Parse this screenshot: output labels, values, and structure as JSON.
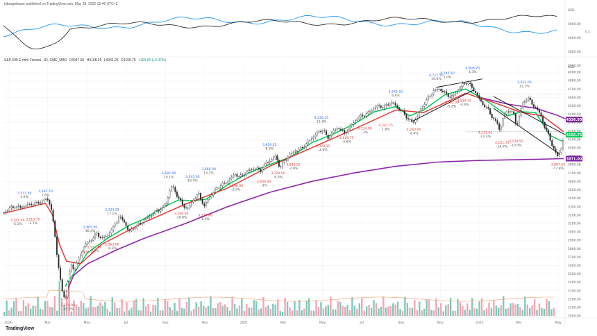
{
  "header": {
    "published_by": "lukasgebauer published on TradingView.com, May 28, 2022 15:46 UTC+2"
  },
  "legend": {
    "symbol": "S&P 500 E-mini Futures, 1D, CME_MINI",
    "open": "O4047.50",
    "high": "H4168.25",
    "low": "L4041.25",
    "close": "C4155.75",
    "change": "+100.00 (+2.47%)"
  },
  "branding": {
    "logo_text": "TradingView"
  },
  "colors": {
    "bg": "#ffffff",
    "grid": "#eef0f3",
    "price": "#2b2b2b",
    "ema_fast": "#00c853",
    "ema_mid": "#e53935",
    "ma_slow": "#8e24aa",
    "overlay_blue": "#2196f3",
    "overlay_black": "#2b2b2b",
    "volume_up": "#7fc9b9",
    "volume_down": "#f3a6b5",
    "tag_green": "#00c853",
    "tag_purple": "#7b1fa2",
    "tag_blue": "#2962ff",
    "annot_high": "#2962ff",
    "annot_low": "#e53935"
  },
  "chart_data": [
    {
      "type": "line",
      "panel": "comparison overlay",
      "y_axis_unit": "USD",
      "y_ticks": [
        "5000.00",
        "4000.00",
        "3000.00",
        "2000.00"
      ],
      "right_labels": [
        "0.1"
      ],
      "series": []
    },
    {
      "type": "candlestick",
      "panel": "main price",
      "y_axis_unit": "USD",
      "ylim": [
        2000,
        4900
      ],
      "x_tick_labels": [
        "2020",
        "Mar",
        "May",
        "Jul",
        "Sep",
        "Nov",
        "2021",
        "Mar",
        "May",
        "Jul",
        "Sep",
        "Nov",
        "2022",
        "Mar",
        "May"
      ],
      "y_tick_labels": [
        "4900.00",
        "4800.00",
        "4700.00",
        "4600.00",
        "4500.00",
        "4400.00",
        "4300.00",
        "4200.00",
        "4100.00",
        "4000.00",
        "3900.00",
        "3800.00",
        "3700.00",
        "3600.00",
        "3500.00",
        "3400.00",
        "3300.00",
        "3200.00",
        "3100.00",
        "3000.00",
        "2900.00",
        "2800.00",
        "2700.00",
        "2600.00",
        "2500.00",
        "2400.00",
        "2300.00",
        "2200.00",
        "2100.00",
        "2000.00"
      ],
      "price_tags": [
        {
          "label": "4336.50",
          "value": 4336.5,
          "color": "#7b1fa2"
        },
        {
          "label": "4155.75",
          "value": 4155.75,
          "color": "#00c853"
        },
        {
          "label": "3871.00",
          "value": 3871,
          "color": "#7b1fa2"
        }
      ],
      "price_path": [
        [
          0,
          3230
        ],
        [
          8,
          3280
        ],
        [
          16,
          3300
        ],
        [
          24,
          3290
        ],
        [
          30,
          3310
        ],
        [
          38,
          3330
        ],
        [
          46,
          3340
        ],
        [
          54,
          3360
        ],
        [
          60,
          3390
        ],
        [
          64,
          3370
        ],
        [
          68,
          3250
        ],
        [
          72,
          3000
        ],
        [
          76,
          2700
        ],
        [
          80,
          2450
        ],
        [
          84,
          2250
        ],
        [
          88,
          2200
        ],
        [
          92,
          2480
        ],
        [
          96,
          2600
        ],
        [
          100,
          2550
        ],
        [
          108,
          2700
        ],
        [
          116,
          2850
        ],
        [
          124,
          2900
        ],
        [
          132,
          2980
        ],
        [
          140,
          2920
        ],
        [
          148,
          2960
        ],
        [
          156,
          3050
        ],
        [
          164,
          3180
        ],
        [
          172,
          3120
        ],
        [
          178,
          3000
        ],
        [
          186,
          3050
        ],
        [
          194,
          3100
        ],
        [
          202,
          3150
        ],
        [
          210,
          3200
        ],
        [
          218,
          3250
        ],
        [
          226,
          3280
        ],
        [
          232,
          3350
        ],
        [
          236,
          3480
        ],
        [
          240,
          3550
        ],
        [
          248,
          3420
        ],
        [
          256,
          3310
        ],
        [
          262,
          3270
        ],
        [
          270,
          3380
        ],
        [
          278,
          3450
        ],
        [
          286,
          3300
        ],
        [
          292,
          3400
        ],
        [
          300,
          3480
        ],
        [
          308,
          3550
        ],
        [
          316,
          3580
        ],
        [
          324,
          3640
        ],
        [
          330,
          3690
        ],
        [
          336,
          3650
        ],
        [
          344,
          3700
        ],
        [
          352,
          3740
        ],
        [
          360,
          3760
        ],
        [
          366,
          3720
        ],
        [
          372,
          3800
        ],
        [
          380,
          3850
        ],
        [
          388,
          3900
        ],
        [
          394,
          3760
        ],
        [
          400,
          3840
        ],
        [
          408,
          3920
        ],
        [
          416,
          3960
        ],
        [
          424,
          3990
        ],
        [
          432,
          4050
        ],
        [
          440,
          4120
        ],
        [
          448,
          4180
        ],
        [
          456,
          4220
        ],
        [
          462,
          4110
        ],
        [
          470,
          4200
        ],
        [
          478,
          4240
        ],
        [
          486,
          4170
        ],
        [
          494,
          4250
        ],
        [
          502,
          4330
        ],
        [
          510,
          4380
        ],
        [
          518,
          4400
        ],
        [
          526,
          4460
        ],
        [
          534,
          4500
        ],
        [
          542,
          4480
        ],
        [
          550,
          4530
        ],
        [
          556,
          4530
        ],
        [
          562,
          4480
        ],
        [
          570,
          4420
        ],
        [
          578,
          4330
        ],
        [
          584,
          4300
        ],
        [
          590,
          4370
        ],
        [
          598,
          4500
        ],
        [
          606,
          4600
        ],
        [
          614,
          4680
        ],
        [
          622,
          4700
        ],
        [
          630,
          4650
        ],
        [
          638,
          4600
        ],
        [
          644,
          4650
        ],
        [
          650,
          4700
        ],
        [
          656,
          4760
        ],
        [
          662,
          4780
        ],
        [
          668,
          4720
        ],
        [
          674,
          4650
        ],
        [
          680,
          4560
        ],
        [
          686,
          4500
        ],
        [
          692,
          4450
        ],
        [
          698,
          4350
        ],
        [
          704,
          4300
        ],
        [
          708,
          4200
        ],
        [
          712,
          4350
        ],
        [
          720,
          4450
        ],
        [
          728,
          4400
        ],
        [
          732,
          4250
        ],
        [
          740,
          4520
        ],
        [
          748,
          4600
        ],
        [
          754,
          4520
        ],
        [
          760,
          4470
        ],
        [
          766,
          4400
        ],
        [
          772,
          4250
        ],
        [
          778,
          4150
        ],
        [
          784,
          4000
        ],
        [
          790,
          3900
        ],
        [
          796,
          4000
        ],
        [
          800,
          4156
        ]
      ],
      "ema_fast_path": [
        [
          88,
          2350
        ],
        [
          100,
          2500
        ],
        [
          120,
          2750
        ],
        [
          150,
          2930
        ],
        [
          180,
          3080
        ],
        [
          200,
          3150
        ],
        [
          230,
          3300
        ],
        [
          250,
          3380
        ],
        [
          270,
          3370
        ],
        [
          290,
          3390
        ],
        [
          320,
          3560
        ],
        [
          350,
          3700
        ],
        [
          380,
          3800
        ],
        [
          410,
          3890
        ],
        [
          440,
          4060
        ],
        [
          470,
          4160
        ],
        [
          500,
          4280
        ],
        [
          530,
          4430
        ],
        [
          560,
          4490
        ],
        [
          580,
          4380
        ],
        [
          600,
          4450
        ],
        [
          630,
          4630
        ],
        [
          660,
          4700
        ],
        [
          690,
          4560
        ],
        [
          720,
          4380
        ],
        [
          740,
          4430
        ],
        [
          760,
          4420
        ],
        [
          780,
          4150
        ],
        [
          800,
          4070
        ]
      ],
      "ema_mid_path": [
        [
          0,
          3220
        ],
        [
          60,
          3340
        ],
        [
          70,
          3200
        ],
        [
          80,
          2850
        ],
        [
          90,
          2650
        ],
        [
          110,
          2620
        ],
        [
          140,
          2850
        ],
        [
          200,
          3110
        ],
        [
          260,
          3330
        ],
        [
          320,
          3520
        ],
        [
          380,
          3780
        ],
        [
          440,
          4000
        ],
        [
          500,
          4220
        ],
        [
          560,
          4450
        ],
        [
          600,
          4420
        ],
        [
          660,
          4650
        ],
        [
          700,
          4540
        ],
        [
          740,
          4420
        ],
        [
          770,
          4380
        ],
        [
          800,
          4190
        ]
      ],
      "ma_slow_path": [
        [
          90,
          2280
        ],
        [
          100,
          2480
        ],
        [
          120,
          2620
        ],
        [
          160,
          2780
        ],
        [
          200,
          2920
        ],
        [
          260,
          3100
        ],
        [
          320,
          3300
        ],
        [
          380,
          3470
        ],
        [
          440,
          3600
        ],
        [
          500,
          3700
        ],
        [
          560,
          3780
        ],
        [
          620,
          3830
        ],
        [
          680,
          3850
        ],
        [
          740,
          3860
        ],
        [
          800,
          3871
        ]
      ],
      "ma_upper_path": [
        [
          680,
          4600
        ],
        [
          720,
          4520
        ],
        [
          760,
          4470
        ],
        [
          790,
          4390
        ],
        [
          805,
          4336
        ]
      ],
      "trend_lines": [
        {
          "from": [
            585,
            4320
          ],
          "to": [
            672,
            4690
          ]
        },
        {
          "from": [
            618,
            4720
          ],
          "to": [
            684,
            4820
          ]
        },
        {
          "from": [
            700,
            4610
          ],
          "to": [
            808,
            4130
          ]
        },
        {
          "from": [
            700,
            4470
          ],
          "to": [
            795,
            3920
          ]
        }
      ],
      "dotted_levels": [
        4640,
        4195
      ],
      "annotations": [
        {
          "x": 30,
          "y": 3385,
          "lines": [
            "3,337.50",
            "4.9%"
          ],
          "kind": "high"
        },
        {
          "x": 60,
          "y": 3405,
          "lines": [
            "3,397.50",
            "1.8%"
          ],
          "kind": "high"
        },
        {
          "x": 20,
          "y": 3160,
          "lines": [
            "3,181.00",
            "-5.1%"
          ],
          "kind": "low"
        },
        {
          "x": 42,
          "y": 3170,
          "lines": [
            "3,213.75",
            "-3.7%"
          ],
          "kind": "low"
        },
        {
          "x": 92,
          "y": 2150,
          "lines": [
            "2,174.00",
            "-34.0%"
          ],
          "kind": "low"
        },
        {
          "x": 124,
          "y": 2980,
          "lines": [
            "2,965.00",
            "36.4%"
          ],
          "kind": "high"
        },
        {
          "x": 155,
          "y": 3185,
          "lines": [
            "3,233.25",
            "17.1%"
          ],
          "kind": "high"
        },
        {
          "x": 130,
          "y": 2840,
          "lines": [
            "2,913.50",
            "-7.7%"
          ],
          "kind": "low"
        },
        {
          "x": 155,
          "y": 2870,
          "lines": [
            "2,963.00",
            "-8.2%"
          ],
          "kind": "low"
        },
        {
          "x": 120,
          "y": 2780,
          "lines": [
            "2,745.25"
          ],
          "kind": "low"
        },
        {
          "x": 236,
          "y": 3620,
          "lines": [
            "3,587.00",
            "10.1%"
          ],
          "kind": "high"
        },
        {
          "x": 270,
          "y": 3580,
          "lines": [
            "3,545.00",
            "10.7%"
          ],
          "kind": "high"
        },
        {
          "x": 293,
          "y": 3670,
          "lines": [
            "3,668.00",
            "13.7%"
          ],
          "kind": "high"
        },
        {
          "x": 254,
          "y": 3240,
          "lines": [
            "3,196.00",
            "-10.8%"
          ],
          "kind": "low"
        },
        {
          "x": 288,
          "y": 3220,
          "lines": [
            "3,223.00",
            "-8.9%"
          ],
          "kind": "low"
        },
        {
          "x": 332,
          "y": 3570,
          "lines": [
            "3,596.00",
            "-2.0%"
          ],
          "kind": "low"
        },
        {
          "x": 372,
          "y": 3620,
          "lines": [
            "3,656.00",
            "-3%"
          ],
          "kind": "low"
        },
        {
          "x": 380,
          "y": 3960,
          "lines": [
            "3,959.25",
            "8.3%"
          ],
          "kind": "high"
        },
        {
          "x": 392,
          "y": 3720,
          "lines": [
            "3,720.50",
            "-6.0%"
          ],
          "kind": "low"
        },
        {
          "x": 414,
          "y": 3820,
          "lines": [
            "3,843.25",
            "-2.9%"
          ],
          "kind": "low"
        },
        {
          "x": 454,
          "y": 4280,
          "lines": [
            "4,236.25",
            "10.3%"
          ],
          "kind": "high"
        },
        {
          "x": 456,
          "y": 4040,
          "lines": [
            "4,029.25",
            "-4.9%"
          ],
          "kind": "low"
        },
        {
          "x": 490,
          "y": 4140,
          "lines": [
            "4,126.75",
            "-2.6%"
          ],
          "kind": "low"
        },
        {
          "x": 516,
          "y": 4250,
          "lines": [
            "4,114.00",
            "-3%"
          ],
          "kind": "low"
        },
        {
          "x": 546,
          "y": 4290,
          "lines": [
            "4,347.75",
            "1.6%"
          ],
          "kind": "low"
        },
        {
          "x": 560,
          "y": 4590,
          "lines": [
            "4,545.50",
            "4.6%"
          ],
          "kind": "high"
        },
        {
          "x": 586,
          "y": 4240,
          "lines": [
            "4,260.00",
            "-6.4%"
          ],
          "kind": "low"
        },
        {
          "x": 618,
          "y": 4790,
          "lines": [
            "4,711.50",
            "10.6%"
          ],
          "kind": "high"
        },
        {
          "x": 634,
          "y": 4810,
          "lines": [
            "4,745.50",
            "1.0%"
          ],
          "kind": "high"
        },
        {
          "x": 670,
          "y": 4870,
          "lines": [
            "4,808.25",
            "1.3%"
          ],
          "kind": "high"
        },
        {
          "x": 640,
          "y": 4560,
          "lines": [
            "4,501.00",
            "-5.2%"
          ],
          "kind": "low"
        },
        {
          "x": 658,
          "y": 4580,
          "lines": [
            "4,519.25",
            "-4.6%"
          ],
          "kind": "low"
        },
        {
          "x": 688,
          "y": 4200,
          "lines": [
            "4,211.00",
            "-12.4%"
          ],
          "kind": "low"
        },
        {
          "x": 712,
          "y": 4080,
          "lines": [
            "4,101.75",
            "-14.7%"
          ],
          "kind": "low"
        },
        {
          "x": 732,
          "y": 4100,
          "lines": [
            "4,129.50",
            "-10.0%"
          ],
          "kind": "low"
        },
        {
          "x": 744,
          "y": 4700,
          "lines": [
            "4,631.00",
            "12.1%"
          ],
          "kind": "high"
        },
        {
          "x": 792,
          "y": 3820,
          "lines": [
            "3,807.50",
            "-17.8%"
          ],
          "kind": "low"
        }
      ]
    },
    {
      "type": "bar",
      "panel": "volume",
      "bar_count": 230,
      "note": "relative volume shape only"
    }
  ]
}
